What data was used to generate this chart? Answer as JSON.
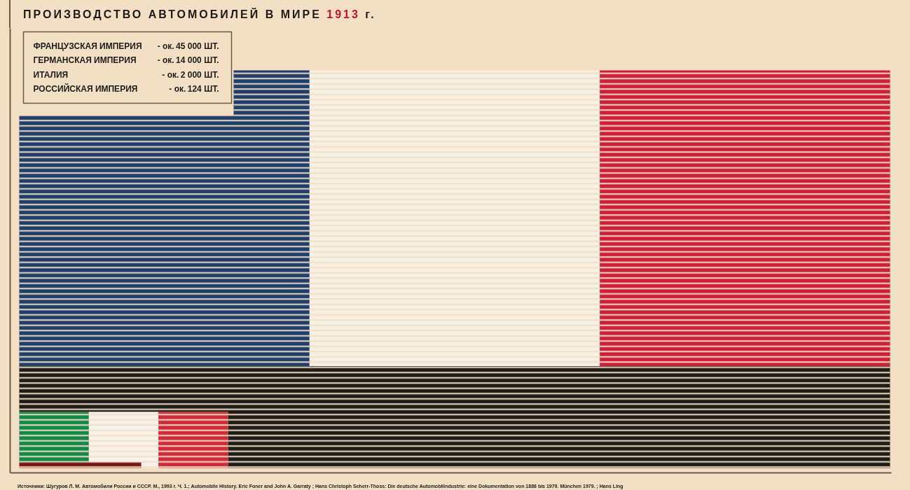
{
  "chart_data": {
    "type": "other",
    "title": "ПРОИЗВОДСТВО АВТОМОБИЛЕЙ В МИРЕ 1913 г.",
    "categories": [
      "ФРАНЦУЗСКАЯ ИМПЕРИЯ",
      "ГЕРМАНСКАЯ ИМПЕРИЯ",
      "ИТАЛИЯ",
      "РОССИЙСКАЯ ИМПЕРИЯ"
    ],
    "values": [
      45000,
      14000,
      2000,
      124
    ],
    "value_labels": [
      "- ок. 45 000 ШТ.",
      "- ок. 14 000 ШТ.",
      "- ок. 2 000 ШТ.",
      "- ок. 124 ШТ."
    ],
    "colors": [
      [
        "#203d6b",
        "#f6efe4",
        "#cd1f3c"
      ],
      [
        "#1e1b18"
      ],
      [
        "#12894b",
        "#f6f1ea",
        "#cf2a3b"
      ],
      [
        "#731719"
      ]
    ],
    "annotations": [
      "Источники: Шугуров Л. М. Автомобили России и СССР. М., 1993 г. Ч. 1.; Automobile History. Eric Foner and John A. Garraty ; Hans Christoph Seherr-Thoss: Die deutsche Automobilindustrie: eine Dokumentation von 1886 bis 1979. München 1979. ; Hans Ling"
    ]
  }
}
